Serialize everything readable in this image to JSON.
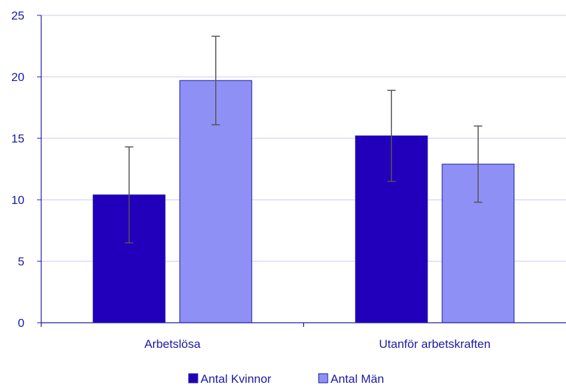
{
  "chart_data": {
    "type": "bar",
    "title": "",
    "xlabel": "",
    "ylabel": "",
    "categories": [
      "Arbetslösa",
      "Utanför arbetskraften"
    ],
    "ylim": [
      0,
      25
    ],
    "yticks": [
      "0",
      "5",
      "10",
      "15",
      "20",
      "25"
    ],
    "grid": true,
    "legend_position": "bottom",
    "series": [
      {
        "name": "Antal  Kvinnor",
        "color": "#2200bb",
        "values": [
          10.4,
          15.2
        ],
        "error_low": [
          6.5,
          11.5
        ],
        "error_high": [
          14.3,
          18.9
        ]
      },
      {
        "name": "Antal  Män",
        "color": "#8f90f5",
        "values": [
          19.7,
          12.9
        ],
        "error_low": [
          16.1,
          9.8
        ],
        "error_high": [
          23.3,
          16.0
        ]
      }
    ],
    "colors": {
      "axis": "#1a1aa6",
      "grid": "#c8c8ee",
      "error_bar": "#555555",
      "bar_border": "#1a1aa6"
    }
  }
}
